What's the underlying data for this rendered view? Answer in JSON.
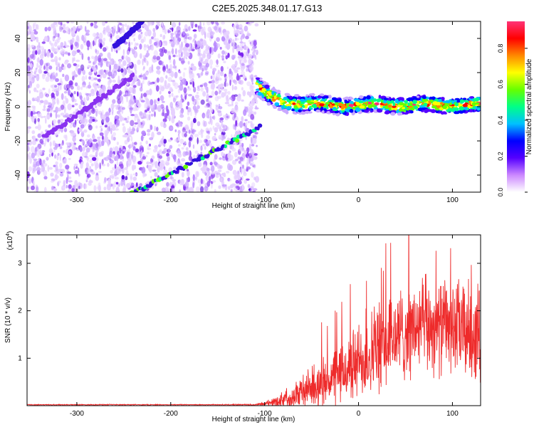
{
  "title": "C2E5.2025.348.01.17.G13",
  "colors": {
    "snr_line": "#ee2b2b",
    "axis": "#000000",
    "spectro_noise": "#7a22ee",
    "colorbar_stops": [
      "#ffffff",
      "#cc88ff",
      "#5500ff",
      "#0000ff",
      "#00c0ff",
      "#00ff88",
      "#66ff00",
      "#ffff00",
      "#ff8800",
      "#ff0000",
      "#ff3377"
    ]
  },
  "chart_data": [
    {
      "type": "heatmap",
      "name": "spectrogram",
      "xlabel": "Height of straight line (km)",
      "ylabel": "Frequency (Hz)",
      "xlim": [
        -353,
        130
      ],
      "ylim": [
        -50,
        50
      ],
      "xticks": [
        -300,
        -200,
        -100,
        0,
        100
      ],
      "xtick_labels": [
        "-300",
        "-200",
        "-100",
        "0",
        "100"
      ],
      "yticks": [
        -40,
        -20,
        0,
        20,
        40
      ],
      "ytick_labels": [
        "-40",
        "-20",
        "0",
        "20",
        "40"
      ],
      "noise_region_x": [
        -353,
        -108
      ],
      "signal_band": {
        "x_start": -108,
        "x_end": 130,
        "freq_center": 1,
        "freq_halfwidth": 4,
        "start_freq": 12
      },
      "diagonal_streaks": [
        {
          "x": [
            -245,
            -105
          ],
          "f": [
            -52,
            -12
          ]
        },
        {
          "x": [
            -260,
            -230
          ],
          "f": [
            35,
            50
          ]
        },
        {
          "x": [
            -335,
            -240
          ],
          "f": [
            -18,
            18
          ]
        }
      ],
      "colorbar": {
        "label": "Normalized spectral amplitude",
        "range": [
          0,
          0.95
        ],
        "ticks": [
          0.0,
          0.2,
          0.4,
          0.6,
          0.8
        ],
        "tick_labels": [
          "0.0",
          "0.2",
          "0.4",
          "0.6",
          "0.8"
        ]
      }
    },
    {
      "type": "line",
      "name": "snr",
      "xlabel": "Height of straight line (km)",
      "ylabel": "SNR (10 * v/v)",
      "yscale_label": "(x10",
      "yscale_exponent": "4",
      "yscale_suffix": ")",
      "xlim": [
        -353,
        130
      ],
      "ylim": [
        0,
        3.6
      ],
      "xticks": [
        -300,
        -200,
        -100,
        0,
        100
      ],
      "xtick_labels": [
        "-300",
        "-200",
        "-100",
        "0",
        "100"
      ],
      "yticks": [
        1,
        2,
        3
      ],
      "ytick_labels": [
        "1",
        "2",
        "3"
      ],
      "series": [
        {
          "name": "SNR",
          "x": [
            -353,
            -300,
            -250,
            -200,
            -150,
            -110,
            -100,
            -90,
            -80,
            -70,
            -60,
            -50,
            -40,
            -30,
            -20,
            -10,
            0,
            10,
            20,
            30,
            40,
            50,
            60,
            70,
            80,
            90,
            100,
            110,
            120,
            130
          ],
          "y": [
            0.02,
            0.02,
            0.02,
            0.02,
            0.02,
            0.02,
            0.04,
            0.08,
            0.14,
            0.22,
            0.3,
            0.38,
            0.46,
            0.56,
            0.66,
            0.78,
            0.92,
            1.05,
            1.18,
            1.32,
            1.45,
            1.55,
            1.62,
            1.66,
            1.68,
            1.68,
            1.65,
            1.6,
            1.55,
            1.5
          ],
          "noise_amplitude": [
            0.01,
            0.01,
            0.01,
            0.01,
            0.01,
            0.02,
            0.04,
            0.1,
            0.18,
            0.28,
            0.35,
            0.42,
            0.5,
            0.58,
            0.66,
            0.74,
            0.82,
            0.9,
            0.95,
            1.0,
            1.0,
            1.0,
            1.0,
            1.0,
            1.0,
            1.0,
            1.0,
            1.05,
            1.05,
            1.05
          ]
        }
      ]
    }
  ]
}
